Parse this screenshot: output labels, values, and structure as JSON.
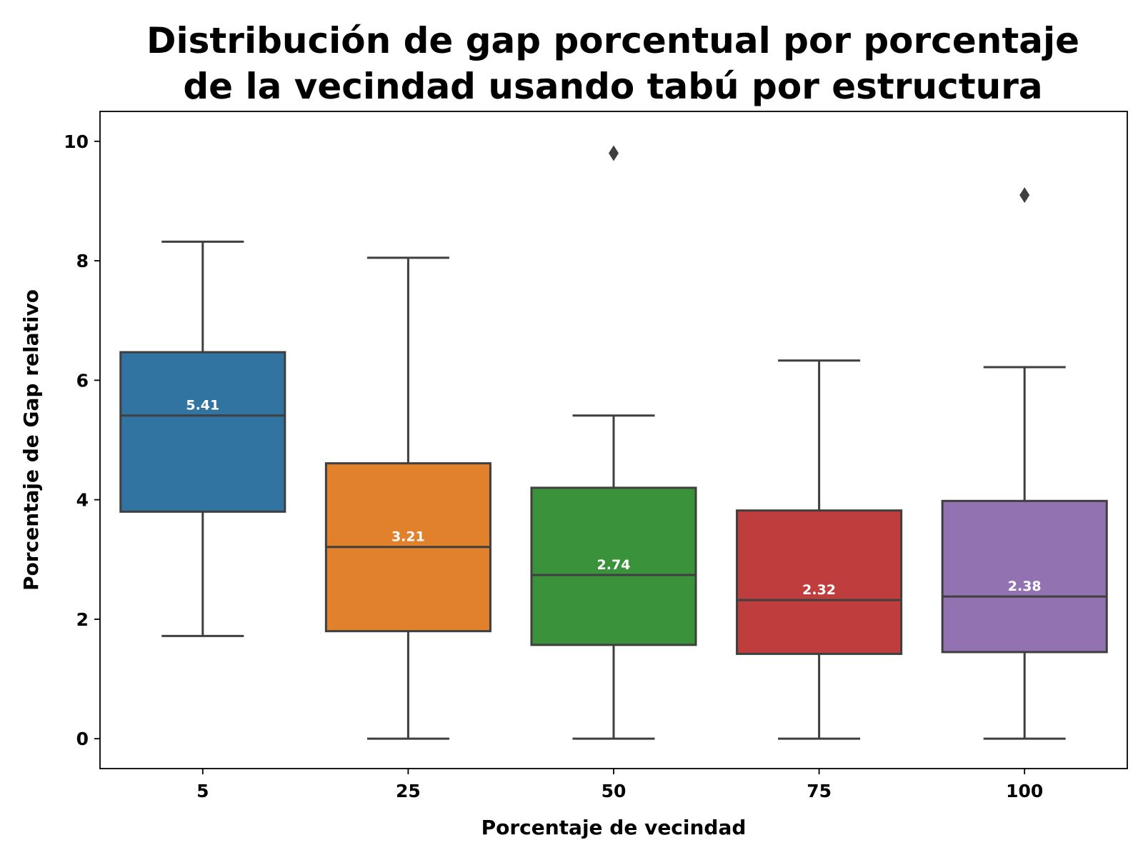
{
  "chart_data": {
    "type": "box",
    "title": "Distribución de gap porcentual por porcentaje de la vecindad usando tabú por estructura",
    "title_lines": [
      "Distribución de gap porcentual por porcentaje",
      "de la vecindad usando tabú por estructura"
    ],
    "xlabel": "Porcentaje de vecindad",
    "ylabel": "Porcentaje de Gap relativo",
    "categories": [
      "5",
      "25",
      "50",
      "75",
      "100"
    ],
    "ylim": [
      -0.5,
      10.5
    ],
    "yticks": [
      0,
      2,
      4,
      6,
      8,
      10
    ],
    "yticklabels": [
      "0",
      "2",
      "4",
      "6",
      "8",
      "10"
    ],
    "grid": false,
    "legend": "none",
    "boxes": [
      {
        "category": "5",
        "whislo": 1.72,
        "q1": 3.8,
        "median": 5.41,
        "q3": 6.47,
        "whishi": 8.32,
        "fliers": [],
        "median_label": "5.41",
        "color": "#3274a1"
      },
      {
        "category": "25",
        "whislo": 0.0,
        "q1": 1.8,
        "median": 3.21,
        "q3": 4.61,
        "whishi": 8.05,
        "fliers": [],
        "median_label": "3.21",
        "color": "#e1812c"
      },
      {
        "category": "50",
        "whislo": 0.0,
        "q1": 1.57,
        "median": 2.74,
        "q3": 4.2,
        "whishi": 5.41,
        "fliers": [
          9.8
        ],
        "median_label": "2.74",
        "color": "#3a923a"
      },
      {
        "category": "75",
        "whislo": 0.0,
        "q1": 1.42,
        "median": 2.32,
        "q3": 3.82,
        "whishi": 6.33,
        "fliers": [],
        "median_label": "2.32",
        "color": "#c03d3e"
      },
      {
        "category": "100",
        "whislo": 0.0,
        "q1": 1.45,
        "median": 2.38,
        "q3": 3.98,
        "whishi": 6.22,
        "fliers": [
          9.1
        ],
        "median_label": "2.38",
        "color": "#9372b2"
      }
    ],
    "line_color": "#3f3f3f"
  }
}
